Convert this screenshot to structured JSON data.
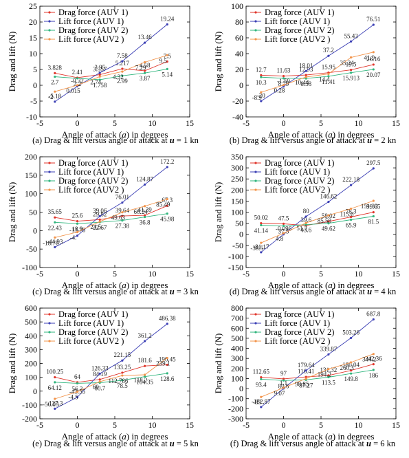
{
  "figure": {
    "legend_labels": [
      "Drag force (AUV 1)",
      "Lift force (AUV 1)",
      "Drag force (AUV 2)",
      "Lift force (AUV2 )"
    ],
    "series_colors": [
      "#e0352b",
      "#3b3fb5",
      "#2fb57d",
      "#f2944b"
    ]
  },
  "chart_data": [
    {
      "type": "line",
      "caption_prefix": "(a) Drag & lift versus angle of attack at",
      "caption_var": "u",
      "caption_suffix": "= 1 kn",
      "xlabel_prefix": "Angle of attack (",
      "xlabel_var": "a",
      "xlabel_suffix": ") in degrees",
      "ylabel": "Drag and lift (N)",
      "xlim": [
        -5,
        15
      ],
      "ylim": [
        -10,
        25
      ],
      "xticks": [
        -5,
        0,
        5,
        10,
        15
      ],
      "yticks": [
        -10,
        -5,
        0,
        5,
        10,
        15,
        20,
        25
      ],
      "x": [
        -3,
        0,
        3,
        6,
        9,
        12
      ],
      "series": [
        {
          "name": "Drag force (AUV 1)",
          "values": [
            3.828,
            2.41,
            3.357,
            5.217,
            4.58,
            7.5
          ],
          "labels": [
            "3.828",
            "2.41",
            "3.357",
            "5.217",
            "4.58",
            "7.5"
          ]
        },
        {
          "name": "Lift force (AUV 1)",
          "values": [
            -5.18,
            -0.32,
            3.95,
            7.58,
            13.46,
            19.24
          ],
          "labels": [
            "-5.18",
            "-0.32",
            "3.95",
            "7.58",
            "13.46",
            "19.24"
          ]
        },
        {
          "name": "Drag force (AUV 2)",
          "values": [
            2.7,
            2.2,
            1.758,
            2.99,
            3.87,
            5.14
          ],
          "labels": [
            "2.7",
            "2.2",
            "1.758",
            "2.99",
            "3.87",
            "5.14"
          ]
        },
        {
          "name": "Lift force (AUV2 )",
          "values": [
            -2,
            0.015,
            2.74,
            4.32,
            7.29,
            9.5
          ],
          "labels": [
            "-2",
            "0.015",
            "2.74",
            "4.32",
            "7.29",
            "9.5"
          ]
        }
      ]
    },
    {
      "type": "line",
      "caption_prefix": "(b) Drag & lift versus angle of attack at",
      "caption_var": "u",
      "caption_suffix": "= 2 kn",
      "xlabel_prefix": "Angle of attack (",
      "xlabel_var": "a",
      "xlabel_suffix": ") in degrees",
      "ylabel": "Drag and lift (N)",
      "xlim": [
        -5,
        15
      ],
      "ylim": [
        -40,
        100
      ],
      "xticks": [
        -5,
        0,
        5,
        10,
        15
      ],
      "yticks": [
        -40,
        -20,
        0,
        20,
        40,
        60,
        80,
        100
      ],
      "x": [
        -3,
        0,
        3,
        6,
        9,
        12
      ],
      "series": [
        {
          "name": "Drag force (AUV 1)",
          "values": [
            12.7,
            11.63,
            12.93,
            15.95,
            19.5,
            26.16
          ],
          "labels": [
            "12.7",
            "11.63",
            "12.93",
            "15.95",
            "19.5",
            "26.16"
          ]
        },
        {
          "name": "Lift force (AUV 1)",
          "values": [
            -20,
            -1.59,
            18.01,
            37.2,
            55.43,
            76.51
          ],
          "labels": [
            "-20",
            "-1.59",
            "18.01",
            "37.2",
            "55.43",
            "76.51"
          ]
        },
        {
          "name": "Drag force (AUV 2)",
          "values": [
            10.3,
            8.79,
            8.58,
            11.41,
            15.913,
            20.07
          ],
          "labels": [
            "10.3",
            "8.79",
            "8.58",
            "11.41",
            "15.913",
            "20.07"
          ]
        },
        {
          "name": "Lift force (AUV2 )",
          "values": [
            -8.9,
            0.28,
            10.44,
            14.4,
            35.24,
            41.9
          ],
          "labels": [
            "-8.9",
            "0.28",
            "10.44",
            "14.4",
            "35.24",
            "41.9"
          ]
        }
      ]
    },
    {
      "type": "line",
      "caption_prefix": "(c) Drag & lift versus angle of attack at",
      "caption_var": "u",
      "caption_suffix": "= 3 kn",
      "xlabel_prefix": "Angle of attack (",
      "xlabel_var": "a",
      "xlabel_suffix": ") in degrees",
      "ylabel": "Drag and lift (N)",
      "xlim": [
        -5,
        15
      ],
      "ylim": [
        -100,
        200
      ],
      "xticks": [
        -5,
        0,
        5,
        10,
        15
      ],
      "yticks": [
        -100,
        -50,
        0,
        50,
        100,
        150,
        200
      ],
      "x": [
        -3,
        0,
        3,
        6,
        9,
        12
      ],
      "series": [
        {
          "name": "Drag force (AUV 1)",
          "values": [
            35.65,
            25.6,
            29.82,
            39.64,
            41.39,
            67.3
          ],
          "labels": [
            "35.65",
            "25.6",
            "29.82",
            "39.64",
            "41.39",
            "67.3"
          ]
        },
        {
          "name": "Lift force (AUV 1)",
          "values": [
            -44.93,
            -13.76,
            39.06,
            76.01,
            124.87,
            172.2
          ],
          "labels": [
            "-44.93",
            "-13.76",
            "39.06",
            "76.01",
            "124.87",
            "172.2"
          ]
        },
        {
          "name": "Drag force (AUV 2)",
          "values": [
            22.43,
            18.9,
            22.67,
            27.38,
            36.8,
            45.98
          ],
          "labels": [
            "22.43",
            "18.9",
            "22.67",
            "27.38",
            "36.8",
            "45.98"
          ]
        },
        {
          "name": "Lift force (AUV2 )",
          "values": [
            -18.76,
            -4,
            24.5,
            49.63,
            66.24,
            85.49
          ],
          "labels": [
            "-18.76",
            "-4.",
            "24.5",
            "49.63",
            "66.24",
            "85.49"
          ]
        }
      ]
    },
    {
      "type": "line",
      "caption_prefix": "(d) Drag & lift versus angle of attack at",
      "caption_var": "u",
      "caption_suffix": "= 4 kn",
      "xlabel_prefix": "Angle of attack (",
      "xlabel_var": "a",
      "xlabel_suffix": ") in degrees",
      "ylabel": "Drag and lift (N)",
      "xlim": [
        -5,
        15
      ],
      "ylim": [
        -150,
        350
      ],
      "xticks": [
        -5,
        0,
        5,
        10,
        15
      ],
      "yticks": [
        -150,
        -100,
        -50,
        0,
        50,
        100,
        150,
        200,
        250,
        300,
        350
      ],
      "x": [
        -3,
        0,
        3,
        6,
        9,
        12
      ],
      "series": [
        {
          "name": "Drag force (AUV 1)",
          "values": [
            50.02,
            47.5,
            39.6,
            58.02,
            78.3,
            99.65
          ],
          "labels": [
            "50.02",
            "47.5",
            "39.6",
            "58.02",
            "78.3",
            "99.65"
          ]
        },
        {
          "name": "Lift force (AUV 1)",
          "values": [
            -81.17,
            -0.096,
            80,
            146.62,
            222.18,
            297.5
          ],
          "labels": [
            "-81.17",
            "-0.096",
            "80",
            "146.62",
            "222.18",
            "297.5"
          ]
        },
        {
          "name": "Drag force (AUV 2)",
          "values": [
            41.14,
            37.5,
            43.6,
            49.62,
            65.9,
            81.5
          ],
          "labels": [
            "41.14",
            "37.5",
            "43.6",
            "49.62",
            "65.9",
            "81.5"
          ]
        },
        {
          "name": "Lift force (AUV2 )",
          "values": [
            -38.5,
            4.8,
            51.2,
            85.58,
            115.6,
            151.33
          ],
          "labels": [
            "-38.5",
            "4.8",
            "51.2",
            "85.58",
            "115.6",
            "151.33"
          ]
        }
      ]
    },
    {
      "type": "line",
      "caption_prefix": "(e) Drag & lift versus angle of attack at",
      "caption_var": "u",
      "caption_suffix": "= 5 kn",
      "xlabel_prefix": "Angle of attack (",
      "xlabel_var": "a",
      "xlabel_suffix": ") in degrees",
      "ylabel": "Drag and lift (N)",
      "xlim": [
        -5,
        15
      ],
      "ylim": [
        -200,
        600
      ],
      "xticks": [
        -5,
        0,
        5,
        10,
        15
      ],
      "yticks": [
        -200,
        -100,
        0,
        100,
        200,
        300,
        400,
        500,
        600
      ],
      "x": [
        -3,
        0,
        3,
        6,
        9,
        12
      ],
      "series": [
        {
          "name": "Drag force (AUV 1)",
          "values": [
            100.25,
            64,
            84.19,
            133.25,
            181.6,
            190.45
          ],
          "labels": [
            "100.25",
            "64",
            "84.19",
            "133.25",
            "181.6",
            "190.45"
          ]
        },
        {
          "name": "Lift force (AUV 1)",
          "values": [
            -127.3,
            -43.55,
            126.33,
            221.15,
            361.2,
            486.38
          ],
          "labels": [
            "-127.3",
            "-43.55",
            "126.33",
            "221.15",
            "361.2",
            "486.38"
          ]
        },
        {
          "name": "Drag force (AUV 2)",
          "values": [
            64.12,
            56.3,
            60.7,
            78.5,
            104.35,
            128.6
          ],
          "labels": [
            "64.12",
            "56.3",
            "60.7",
            "78.5",
            "104.35",
            "128.6"
          ]
        },
        {
          "name": "Lift force (AUV2 )",
          "values": [
            -56.03,
            -4.5,
            69,
            112.786,
            118.2,
            239.1
          ],
          "labels": [
            "-56.03",
            "-4.5",
            "69",
            "112.786",
            "118.2",
            "239.1"
          ]
        }
      ]
    },
    {
      "type": "line",
      "caption_prefix": "(f) Drag & lift versus angle of attack at",
      "caption_var": "u",
      "caption_suffix": "= 6 kn",
      "xlabel_prefix": "Angle of attack (",
      "xlabel_var": "a",
      "xlabel_suffix": ") in degrees",
      "ylabel": "Drag and lift (N)",
      "xlim": [
        -5,
        15
      ],
      "ylim": [
        -300,
        800
      ],
      "xticks": [
        -5,
        0,
        5,
        10,
        15
      ],
      "yticks": [
        -300,
        -200,
        -100,
        0,
        100,
        200,
        300,
        400,
        500,
        600,
        700,
        800
      ],
      "x": [
        -3,
        0,
        3,
        6,
        9,
        12
      ],
      "series": [
        {
          "name": "Drag force (AUV 1)",
          "values": [
            112.65,
            97,
            116.41,
            131.32,
            180.04,
            242.36
          ],
          "labels": [
            "112.65",
            "97",
            "116.41",
            "131.32",
            "180.04",
            "242.36"
          ]
        },
        {
          "name": "Lift force (AUV 1)",
          "values": [
            -182.87,
            1.1,
            179.64,
            339.87,
            503.26,
            687.8
          ],
          "labels": [
            "-182.87",
            "1.1",
            "179.64",
            "339.87",
            "503.26",
            "687.8"
          ]
        },
        {
          "name": "Drag force (AUV 2)",
          "values": [
            93.4,
            80.6,
            87.27,
            113.5,
            149.8,
            186
          ],
          "labels": [
            "93.4",
            "80.6",
            "87.27",
            "113.5",
            "149.8",
            "186"
          ]
        },
        {
          "name": "Lift force (AUV2 )",
          "values": [
            -83,
            9.07,
            98.85,
            194.2,
            260.3,
            344.2
          ],
          "labels": [
            "-83",
            "9.07",
            "98.85",
            "194.2",
            "260.3",
            "344.2"
          ]
        }
      ]
    }
  ]
}
